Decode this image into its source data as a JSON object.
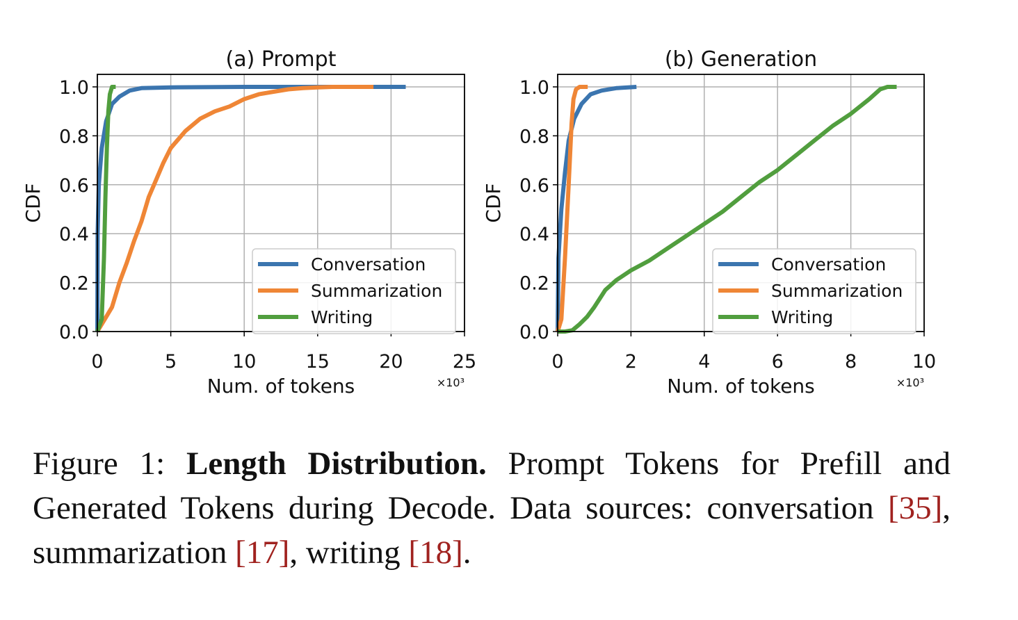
{
  "colors": {
    "Conversation": "#3b75af",
    "Summarization": "#ef8636",
    "Writing": "#519e3e",
    "grid": "#b0b0b0",
    "axis": "#000000",
    "ref": "#a0221f"
  },
  "chart_data": [
    {
      "type": "line",
      "title": "(a) Prompt",
      "xlabel": "Num. of tokens",
      "ylabel": "CDF",
      "x_multiplier": "×10³",
      "xlim": [
        0,
        25
      ],
      "ylim": [
        0,
        1.0
      ],
      "xticks": [
        0,
        5,
        10,
        15,
        20,
        25
      ],
      "yticks": [
        0.0,
        0.2,
        0.4,
        0.6,
        0.8,
        1.0
      ],
      "grid": true,
      "legend_placement": "lower-right",
      "series": [
        {
          "name": "Conversation",
          "points": [
            [
              0,
              0
            ],
            [
              0.02,
              0.4
            ],
            [
              0.1,
              0.6
            ],
            [
              0.3,
              0.75
            ],
            [
              0.6,
              0.86
            ],
            [
              1.0,
              0.93
            ],
            [
              1.5,
              0.96
            ],
            [
              2.2,
              0.985
            ],
            [
              3.0,
              0.995
            ],
            [
              5.0,
              0.998
            ],
            [
              10.0,
              1.0
            ],
            [
              15.0,
              1.0
            ],
            [
              21.0,
              1.0
            ]
          ]
        },
        {
          "name": "Summarization",
          "points": [
            [
              0,
              0
            ],
            [
              0.5,
              0.05
            ],
            [
              1.0,
              0.1
            ],
            [
              1.5,
              0.2
            ],
            [
              2.0,
              0.28
            ],
            [
              2.5,
              0.37
            ],
            [
              3.0,
              0.45
            ],
            [
              3.5,
              0.55
            ],
            [
              4.0,
              0.62
            ],
            [
              4.5,
              0.69
            ],
            [
              5.0,
              0.75
            ],
            [
              6.0,
              0.82
            ],
            [
              7.0,
              0.87
            ],
            [
              8.0,
              0.9
            ],
            [
              9.0,
              0.92
            ],
            [
              10.0,
              0.95
            ],
            [
              11.0,
              0.97
            ],
            [
              12.0,
              0.98
            ],
            [
              13.0,
              0.99
            ],
            [
              14.0,
              0.995
            ],
            [
              15.0,
              0.998
            ],
            [
              16.0,
              1.0
            ],
            [
              18.8,
              1.0
            ]
          ]
        },
        {
          "name": "Writing",
          "points": [
            [
              0,
              0
            ],
            [
              0.3,
              0.05
            ],
            [
              0.45,
              0.3
            ],
            [
              0.55,
              0.55
            ],
            [
              0.65,
              0.75
            ],
            [
              0.75,
              0.9
            ],
            [
              0.85,
              0.97
            ],
            [
              1.0,
              1.0
            ],
            [
              1.25,
              1.0
            ]
          ]
        }
      ]
    },
    {
      "type": "line",
      "title": "(b) Generation",
      "xlabel": "Num. of tokens",
      "ylabel": "CDF",
      "x_multiplier": "×10³",
      "xlim": [
        0,
        10
      ],
      "ylim": [
        0,
        1.0
      ],
      "xticks": [
        0,
        2,
        4,
        6,
        8,
        10
      ],
      "yticks": [
        0.0,
        0.2,
        0.4,
        0.6,
        0.8,
        1.0
      ],
      "grid": true,
      "legend_placement": "lower-right",
      "series": [
        {
          "name": "Conversation",
          "points": [
            [
              0,
              0
            ],
            [
              0.02,
              0.3
            ],
            [
              0.1,
              0.5
            ],
            [
              0.2,
              0.65
            ],
            [
              0.3,
              0.78
            ],
            [
              0.45,
              0.87
            ],
            [
              0.65,
              0.93
            ],
            [
              0.9,
              0.97
            ],
            [
              1.2,
              0.985
            ],
            [
              1.6,
              0.995
            ],
            [
              2.15,
              1.0
            ]
          ]
        },
        {
          "name": "Summarization",
          "points": [
            [
              0,
              0
            ],
            [
              0.1,
              0.05
            ],
            [
              0.2,
              0.3
            ],
            [
              0.3,
              0.6
            ],
            [
              0.38,
              0.85
            ],
            [
              0.43,
              0.95
            ],
            [
              0.5,
              0.99
            ],
            [
              0.6,
              1.0
            ],
            [
              0.82,
              1.0
            ]
          ]
        },
        {
          "name": "Writing",
          "points": [
            [
              0,
              0
            ],
            [
              0.2,
              0.0
            ],
            [
              0.4,
              0.005
            ],
            [
              0.6,
              0.03
            ],
            [
              0.8,
              0.06
            ],
            [
              1.0,
              0.1
            ],
            [
              1.3,
              0.17
            ],
            [
              1.6,
              0.21
            ],
            [
              2.0,
              0.25
            ],
            [
              2.5,
              0.29
            ],
            [
              3.0,
              0.34
            ],
            [
              3.5,
              0.39
            ],
            [
              4.0,
              0.44
            ],
            [
              4.5,
              0.49
            ],
            [
              5.0,
              0.55
            ],
            [
              5.5,
              0.61
            ],
            [
              6.0,
              0.66
            ],
            [
              6.5,
              0.72
            ],
            [
              7.0,
              0.78
            ],
            [
              7.5,
              0.84
            ],
            [
              8.0,
              0.89
            ],
            [
              8.5,
              0.95
            ],
            [
              8.8,
              0.99
            ],
            [
              9.0,
              1.0
            ],
            [
              9.25,
              1.0
            ]
          ]
        }
      ]
    }
  ],
  "caption": {
    "prefix": "Figure 1: ",
    "bold": "Length Distribution.",
    "text1": " Prompt Tokens for Prefill and Generated Tokens during Decode. Data sources: conversation ",
    "ref1": "[35]",
    "text2": ", summarization ",
    "ref2": "[17]",
    "text3": ", writing ",
    "ref3": "[18]",
    "text4": "."
  }
}
